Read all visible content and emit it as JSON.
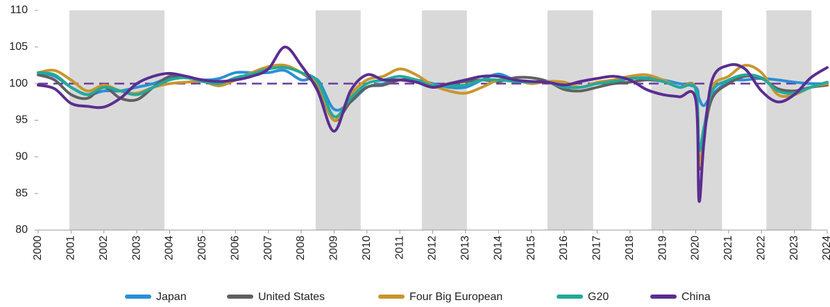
{
  "chart_data": {
    "type": "line",
    "x": [
      2000,
      2000.5,
      2001,
      2001.5,
      2002,
      2002.5,
      2003,
      2003.5,
      2004,
      2004.5,
      2005,
      2005.5,
      2006,
      2006.5,
      2007,
      2007.5,
      2008,
      2008.5,
      2009,
      2009.5,
      2010,
      2010.5,
      2011,
      2011.5,
      2012,
      2012.5,
      2013,
      2013.5,
      2014,
      2014.5,
      2015,
      2015.5,
      2016,
      2016.5,
      2017,
      2017.5,
      2018,
      2018.5,
      2019,
      2019.5,
      2020,
      2020.1,
      2020.25,
      2020.5,
      2021,
      2021.5,
      2022,
      2022.5,
      2023,
      2023.5,
      2024
    ],
    "series": [
      {
        "name": "Japan",
        "color": "#2b8fd6",
        "values": [
          101.5,
          101.0,
          99.5,
          98.5,
          99.0,
          99.0,
          99.5,
          100.0,
          100.8,
          100.8,
          100.5,
          100.7,
          101.5,
          101.5,
          101.5,
          101.8,
          100.5,
          100.5,
          96.5,
          97.5,
          99.5,
          100.0,
          100.5,
          100.5,
          100.0,
          99.5,
          99.5,
          100.5,
          101.3,
          100.5,
          100.2,
          100.3,
          99.8,
          99.5,
          100.0,
          100.2,
          100.7,
          100.8,
          100.5,
          100.0,
          99.5,
          98.0,
          97.0,
          98.5,
          100.3,
          100.5,
          100.7,
          100.5,
          100.2,
          100.0,
          100.0
        ]
      },
      {
        "name": "United States",
        "color": "#606060",
        "values": [
          101.2,
          100.5,
          98.5,
          98.0,
          99.5,
          98.0,
          97.8,
          99.5,
          101.0,
          100.8,
          100.5,
          100.0,
          100.5,
          101.2,
          102.0,
          102.3,
          101.5,
          99.5,
          95.0,
          97.5,
          99.5,
          99.8,
          100.5,
          100.5,
          99.5,
          100.0,
          100.3,
          100.5,
          100.3,
          100.8,
          100.8,
          100.3,
          99.2,
          99.0,
          99.5,
          100.0,
          100.2,
          100.5,
          100.3,
          99.5,
          99.2,
          88.5,
          93.0,
          98.0,
          100.0,
          101.0,
          100.7,
          99.3,
          99.0,
          99.5,
          99.8
        ]
      },
      {
        "name": "Four Big European",
        "color": "#c9962e",
        "values": [
          101.5,
          101.8,
          100.5,
          99.0,
          99.8,
          99.0,
          98.7,
          99.5,
          100.0,
          100.2,
          100.3,
          99.7,
          100.5,
          101.5,
          102.3,
          102.5,
          101.5,
          100.0,
          95.0,
          98.5,
          100.5,
          101.0,
          102.0,
          101.2,
          99.8,
          99.0,
          98.7,
          99.5,
          100.5,
          100.5,
          100.0,
          100.3,
          100.2,
          99.5,
          100.2,
          100.5,
          101.0,
          101.2,
          100.5,
          99.5,
          99.2,
          89.0,
          93.0,
          99.5,
          101.0,
          102.5,
          101.5,
          98.5,
          98.5,
          99.5,
          100.0
        ]
      },
      {
        "name": "G20",
        "color": "#23a99a",
        "values": [
          101.5,
          101.2,
          99.5,
          98.5,
          99.5,
          99.0,
          98.5,
          99.5,
          100.5,
          100.8,
          100.3,
          100.0,
          100.8,
          101.3,
          102.0,
          102.2,
          101.5,
          100.3,
          95.5,
          98.0,
          100.0,
          100.5,
          101.0,
          100.5,
          99.7,
          99.7,
          99.8,
          100.5,
          100.5,
          100.3,
          100.2,
          100.2,
          99.5,
          99.5,
          100.0,
          100.3,
          100.7,
          100.7,
          100.3,
          99.5,
          99.2,
          91.0,
          94.0,
          99.0,
          100.5,
          101.2,
          100.8,
          99.0,
          98.7,
          99.5,
          100.2
        ]
      },
      {
        "name": "China",
        "color": "#5b2d91",
        "values": [
          99.8,
          99.3,
          97.3,
          96.9,
          96.8,
          98.0,
          100.0,
          101.0,
          101.4,
          101.0,
          100.5,
          100.3,
          100.5,
          101.0,
          102.0,
          105.0,
          102.5,
          99.0,
          93.5,
          99.0,
          101.2,
          100.5,
          100.5,
          100.2,
          99.5,
          100.0,
          100.5,
          101.0,
          101.0,
          100.5,
          100.3,
          100.2,
          99.8,
          100.3,
          100.7,
          101.0,
          100.5,
          99.2,
          98.5,
          98.2,
          97.8,
          84.0,
          92.0,
          100.5,
          102.5,
          102.0,
          99.0,
          97.5,
          98.5,
          100.8,
          102.2
        ]
      }
    ],
    "xlim": [
      2000,
      2024
    ],
    "xticks": [
      2000,
      2001,
      2002,
      2003,
      2004,
      2005,
      2006,
      2007,
      2008,
      2009,
      2010,
      2011,
      2012,
      2013,
      2014,
      2015,
      2016,
      2017,
      2018,
      2019,
      2020,
      2021,
      2022,
      2023,
      2024
    ],
    "ylim": [
      80,
      110
    ],
    "yticks": [
      80,
      85,
      90,
      95,
      100,
      105,
      110
    ],
    "shaded_periods": [
      [
        2000.95,
        2003.84
      ],
      [
        2008.44,
        2009.81
      ],
      [
        2011.67,
        2013.04
      ],
      [
        2015.49,
        2016.88
      ],
      [
        2018.65,
        2020.8
      ],
      [
        2022.15,
        2023.52
      ]
    ],
    "shade_color": "#d9d9d9",
    "reference_line": 100,
    "reference_color": "#6a3d9a",
    "legend": "bottom",
    "grid": false
  }
}
